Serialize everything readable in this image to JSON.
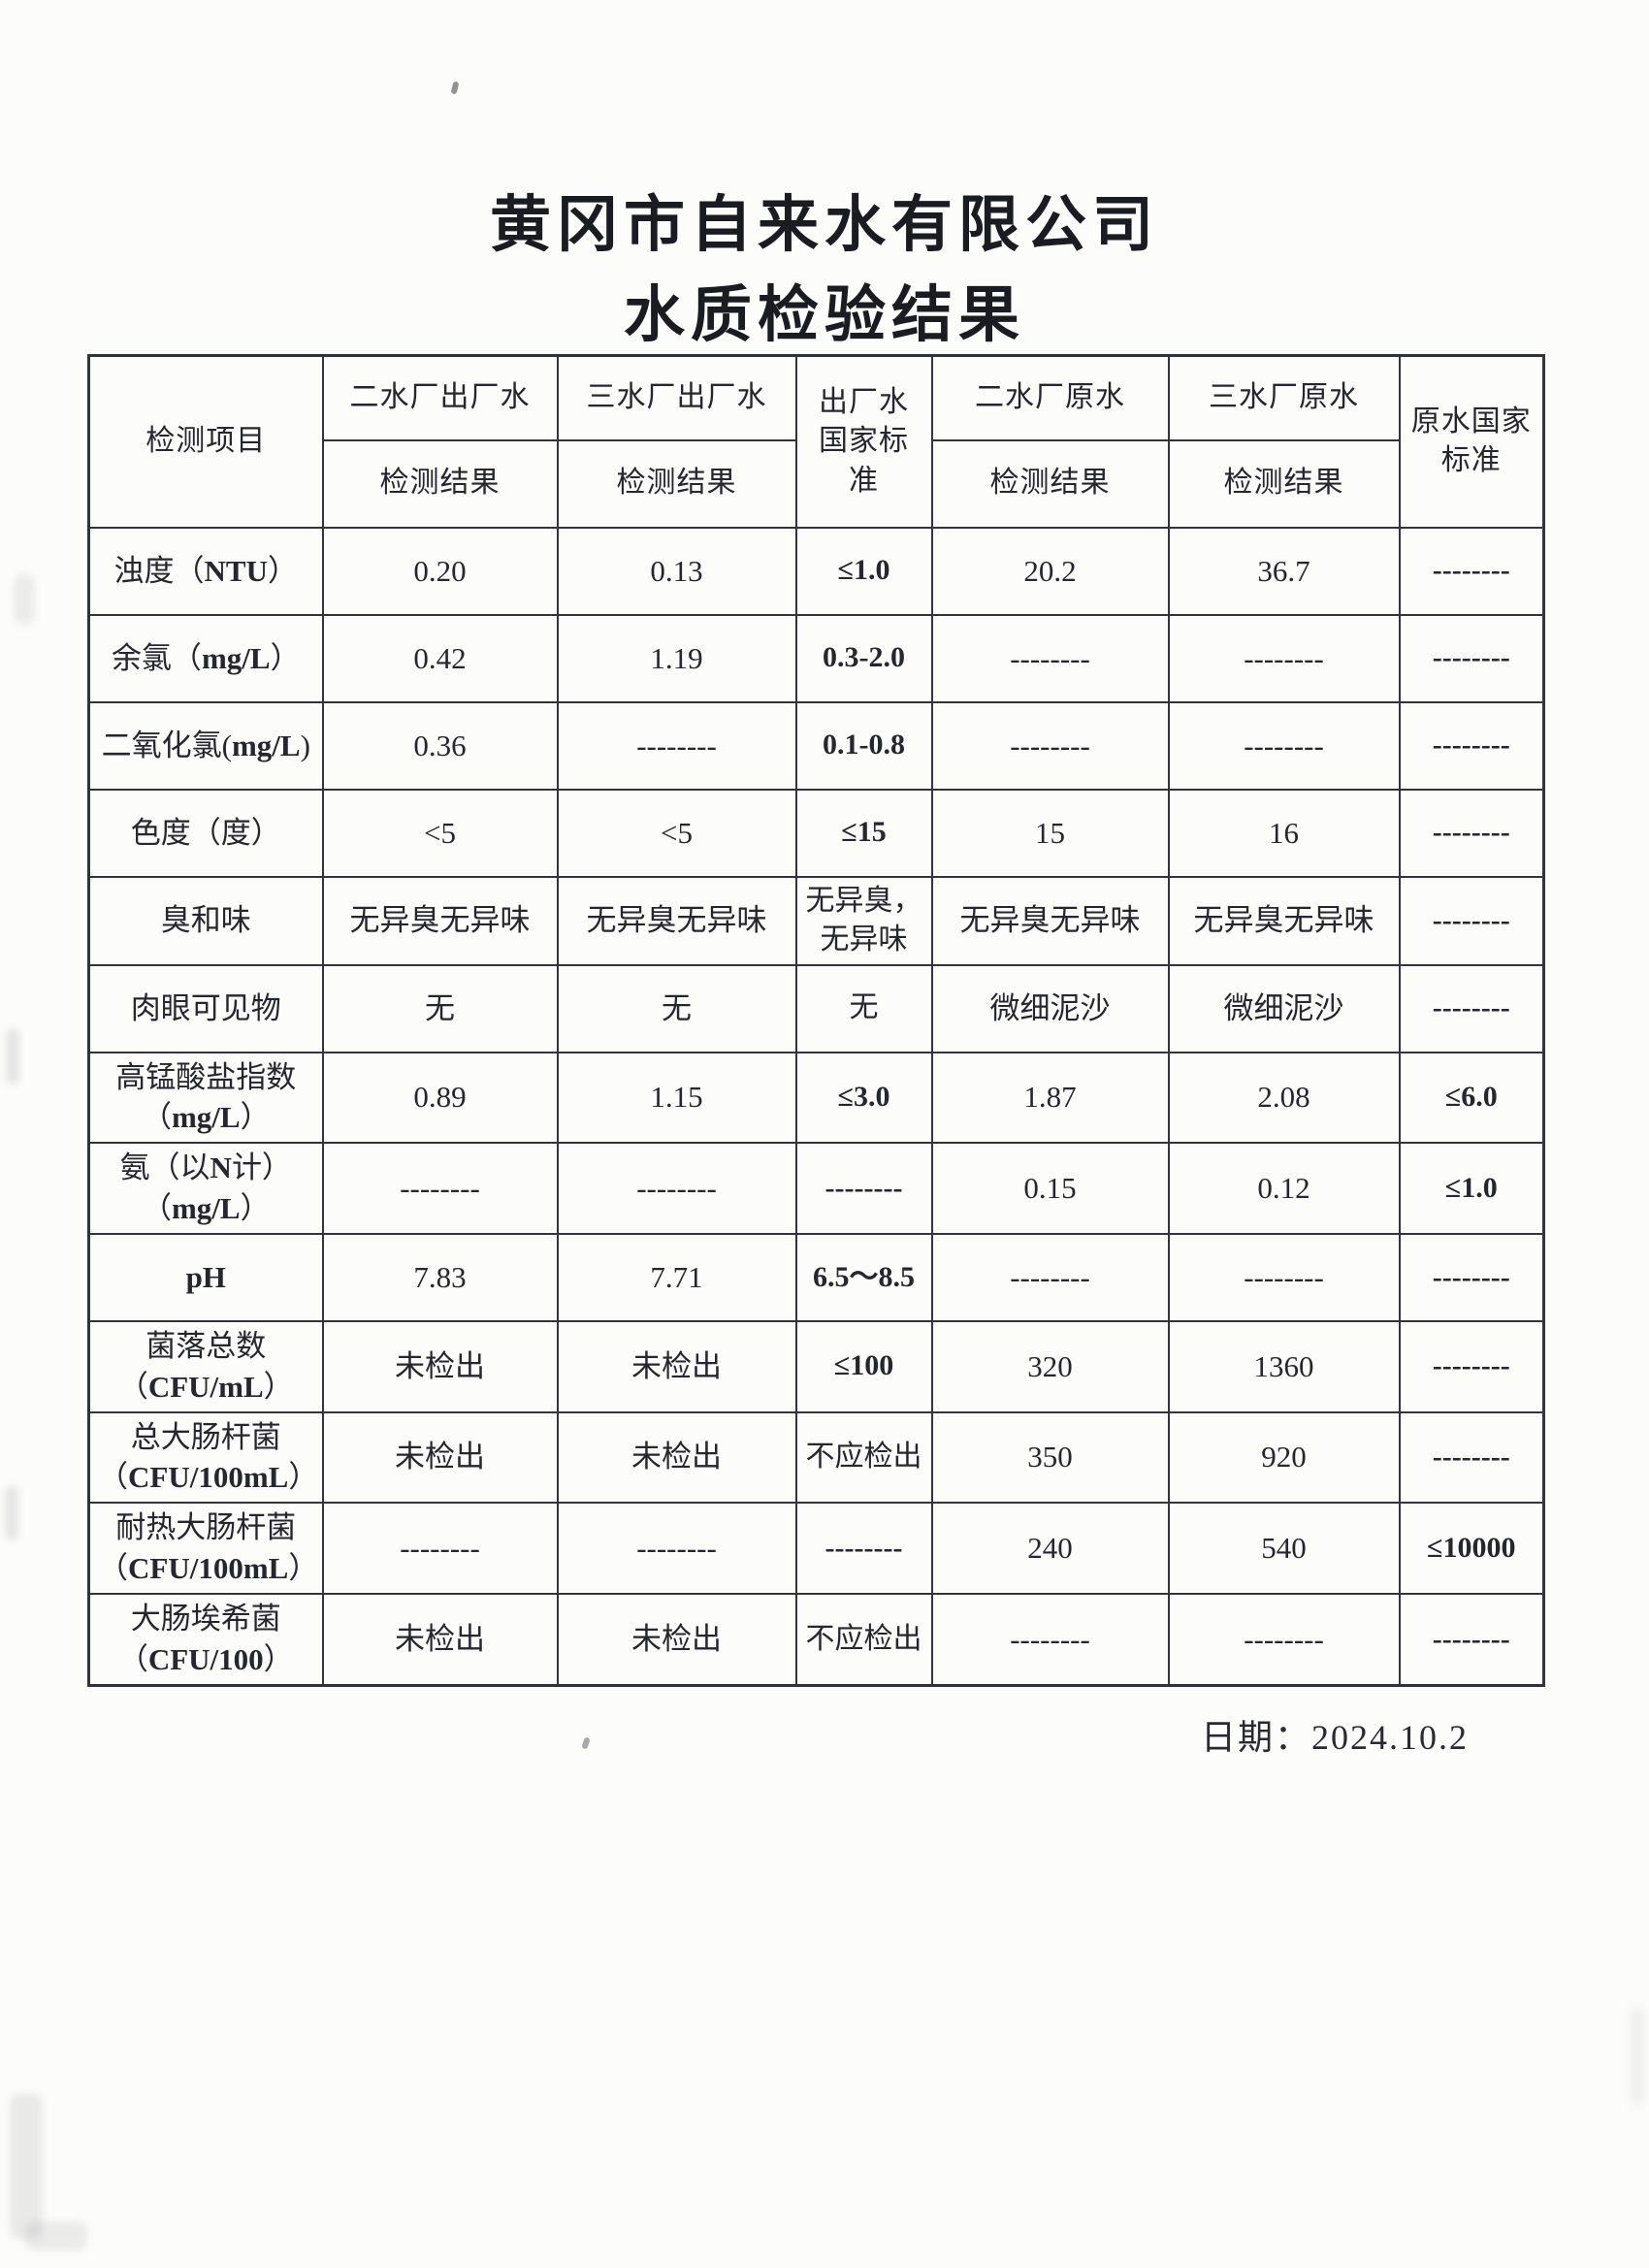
{
  "page": {
    "title_line1": "黄冈市自来水有限公司",
    "title_line2": "水质检验结果",
    "date_label": "日期：2024.10.2"
  },
  "table": {
    "header": {
      "item_col": "检测项目",
      "plant2_finished": "二水厂出厂水",
      "plant3_finished": "三水厂出厂水",
      "finished_standard": "出厂水国家标准",
      "plant2_raw": "二水厂原水",
      "plant3_raw": "三水厂原水",
      "raw_standard": "原水国家标准",
      "result_sub": "检测结果"
    },
    "rows": [
      {
        "item": "浊度（NTU）",
        "c2": "0.20",
        "c3": "0.13",
        "c4": "≤1.0",
        "c5": "20.2",
        "c6": "36.7",
        "c7": "--------"
      },
      {
        "item": "余氯（mg/L）",
        "c2": "0.42",
        "c3": "1.19",
        "c4": "0.3-2.0",
        "c5": "--------",
        "c6": "--------",
        "c7": "--------"
      },
      {
        "item": "二氧化氯(mg/L)",
        "c2": "0.36",
        "c3": "--------",
        "c4": "0.1-0.8",
        "c5": "--------",
        "c6": "--------",
        "c7": "--------"
      },
      {
        "item": "色度（度）",
        "c2": "<5",
        "c3": "<5",
        "c4": "≤15",
        "c5": "15",
        "c6": "16",
        "c7": "--------"
      },
      {
        "item": "臭和味",
        "c2": "无异臭无异味",
        "c3": "无异臭无异味",
        "c4": "无异臭，\n无异味",
        "c5": "无异臭无异味",
        "c6": "无异臭无异味",
        "c7": "--------"
      },
      {
        "item": "肉眼可见物",
        "c2": "无",
        "c3": "无",
        "c4": "无",
        "c5": "微细泥沙",
        "c6": "微细泥沙",
        "c7": "--------"
      },
      {
        "item": "高锰酸盐指数\n（mg/L）",
        "c2": "0.89",
        "c3": "1.15",
        "c4": "≤3.0",
        "c5": "1.87",
        "c6": "2.08",
        "c7": "≤6.0"
      },
      {
        "item": "氨（以N计）\n（mg/L）",
        "c2": "--------",
        "c3": "--------",
        "c4": "--------",
        "c5": "0.15",
        "c6": "0.12",
        "c7": "≤1.0"
      },
      {
        "item": "pH",
        "c2": "7.83",
        "c3": "7.71",
        "c4": "6.5～8.5",
        "c5": "--------",
        "c6": "--------",
        "c7": "--------"
      },
      {
        "item": "菌落总数\n（CFU/mL）",
        "c2": "未检出",
        "c3": "未检出",
        "c4": "≤100",
        "c5": "320",
        "c6": "1360",
        "c7": "--------"
      },
      {
        "item": "总大肠杆菌\n（CFU/100mL）",
        "c2": "未检出",
        "c3": "未检出",
        "c4": "不应检出",
        "c5": "350",
        "c6": "920",
        "c7": "--------"
      },
      {
        "item": "耐热大肠杆菌\n（CFU/100mL）",
        "c2": "--------",
        "c3": "--------",
        "c4": "--------",
        "c5": "240",
        "c6": "540",
        "c7": "≤10000"
      },
      {
        "item": "大肠埃希菌\n（CFU/100）",
        "c2": "未检出",
        "c3": "未检出",
        "c4": "不应检出",
        "c5": "--------",
        "c6": "--------",
        "c7": "--------"
      }
    ]
  }
}
